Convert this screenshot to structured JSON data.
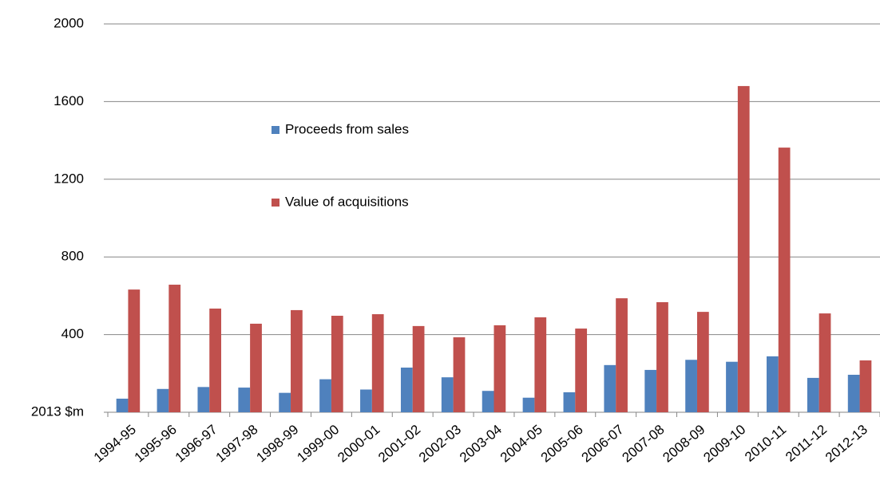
{
  "chart_data": {
    "type": "bar",
    "categories": [
      "1994-95",
      "1995-96",
      "1996-97",
      "1997-98",
      "1998-99",
      "1999-00",
      "2000-01",
      "2001-02",
      "2002-03",
      "2003-04",
      "2004-05",
      "2005-06",
      "2006-07",
      "2007-08",
      "2008-09",
      "2009-10",
      "2010-11",
      "2011-12",
      "2012-13"
    ],
    "series": [
      {
        "name": "Proceeds from sales",
        "color": "#4f81bd",
        "values": [
          70,
          120,
          130,
          127,
          100,
          170,
          117,
          230,
          180,
          110,
          75,
          103,
          243,
          218,
          270,
          260,
          288,
          177,
          193
        ]
      },
      {
        "name": "Value of acquisitions",
        "color": "#c0504d",
        "values": [
          632,
          657,
          534,
          456,
          526,
          497,
          505,
          444,
          386,
          448,
          489,
          431,
          587,
          567,
          517,
          1680,
          1363,
          509,
          267
        ]
      }
    ],
    "ylim": [
      0,
      2000
    ],
    "yticks": [
      {
        "value": 0,
        "label": "2013 $m"
      },
      400,
      800,
      1200,
      1600,
      2000
    ],
    "grid": true,
    "legend_position": "upper center"
  }
}
